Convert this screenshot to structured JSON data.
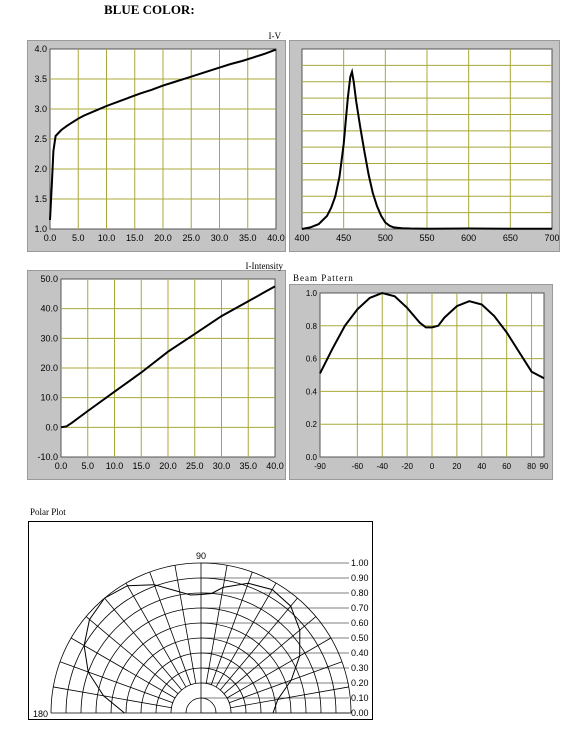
{
  "heading": "BLUE COLOR:",
  "chart_data": [
    {
      "type": "line",
      "title": "I-V",
      "xlim": [
        0,
        40
      ],
      "ylim": [
        1.0,
        4.0
      ],
      "xticks": [
        "0.0",
        "5.0",
        "10.0",
        "15.0",
        "20.0",
        "25.0",
        "30.0",
        "35.0",
        "40.0"
      ],
      "yticks": [
        "1.0",
        "1.5",
        "2.0",
        "2.5",
        "3.0",
        "3.5",
        "4.0"
      ],
      "grid": true,
      "x": [
        0,
        0.3,
        0.6,
        1,
        2,
        3,
        4,
        5,
        6,
        8,
        10,
        12,
        14,
        16,
        18,
        20,
        22,
        24,
        26,
        28,
        30,
        32,
        34,
        36,
        38,
        40
      ],
      "y": [
        1.15,
        1.7,
        2.3,
        2.55,
        2.65,
        2.72,
        2.78,
        2.84,
        2.89,
        2.97,
        3.05,
        3.12,
        3.19,
        3.26,
        3.32,
        3.39,
        3.45,
        3.51,
        3.57,
        3.63,
        3.69,
        3.75,
        3.8,
        3.86,
        3.92,
        3.99
      ]
    },
    {
      "type": "line",
      "title": "",
      "xlim": [
        400,
        700
      ],
      "ylim": [
        0,
        1.1
      ],
      "xticks": [
        "400",
        "450",
        "500",
        "550",
        "600",
        "650",
        "700"
      ],
      "grid": true,
      "x": [
        400,
        410,
        420,
        430,
        435,
        440,
        445,
        450,
        455,
        458,
        460,
        462,
        465,
        470,
        475,
        480,
        485,
        490,
        495,
        500,
        505,
        510,
        520,
        530,
        550,
        600,
        650,
        700
      ],
      "y": [
        0,
        0.01,
        0.03,
        0.08,
        0.13,
        0.2,
        0.32,
        0.52,
        0.8,
        0.93,
        0.96,
        0.9,
        0.78,
        0.62,
        0.47,
        0.33,
        0.22,
        0.14,
        0.08,
        0.04,
        0.02,
        0.01,
        0.005,
        0.003,
        0.002,
        0.003,
        0.002,
        0.002
      ]
    },
    {
      "type": "line",
      "title": "I-Intensity",
      "xlim": [
        0,
        40
      ],
      "ylim": [
        -10,
        50
      ],
      "xticks": [
        "0.0",
        "5.0",
        "10.0",
        "15.0",
        "20.0",
        "25.0",
        "30.0",
        "35.0",
        "40.0"
      ],
      "yticks": [
        "-10.0",
        "0.0",
        "10.0",
        "20.0",
        "30.0",
        "40.0",
        "50.0"
      ],
      "grid": true,
      "x": [
        0,
        1,
        2,
        5,
        10,
        15,
        20,
        25,
        30,
        35,
        38,
        40
      ],
      "y": [
        0,
        0.3,
        1.5,
        5.5,
        12,
        18.5,
        25.5,
        31.5,
        37.5,
        42.5,
        45.5,
        47.5
      ]
    },
    {
      "type": "line",
      "title": "Beam Pattern",
      "xlim": [
        -90,
        90
      ],
      "ylim": [
        0,
        1.0
      ],
      "xticks": [
        "-90",
        "-60",
        "-40",
        "-20",
        "0",
        "20",
        "40",
        "60",
        "80",
        "90"
      ],
      "yticks": [
        "0.0",
        "0.2",
        "0.4",
        "0.6",
        "0.8",
        "1.0"
      ],
      "grid": true,
      "x": [
        -90,
        -80,
        -70,
        -60,
        -50,
        -40,
        -30,
        -20,
        -10,
        -5,
        0,
        5,
        10,
        20,
        30,
        40,
        50,
        60,
        70,
        80,
        90
      ],
      "y": [
        0.51,
        0.66,
        0.8,
        0.9,
        0.97,
        1.0,
        0.98,
        0.91,
        0.82,
        0.79,
        0.79,
        0.8,
        0.85,
        0.92,
        0.95,
        0.93,
        0.86,
        0.76,
        0.64,
        0.52,
        0.48
      ]
    },
    {
      "type": "line",
      "title": "Polar Plot",
      "radial_ticks": [
        "0.00",
        "0.10",
        "0.20",
        "0.30",
        "0.40",
        "0.50",
        "0.60",
        "0.70",
        "0.80",
        "0.90",
        "1.00"
      ],
      "angle_labels": [
        "90",
        "180"
      ],
      "grid": true,
      "theta": [
        0,
        10,
        20,
        30,
        40,
        50,
        60,
        70,
        80,
        85,
        90,
        95,
        100,
        110,
        120,
        130,
        140,
        150,
        160,
        170,
        180
      ],
      "r": [
        0.48,
        0.52,
        0.64,
        0.76,
        0.86,
        0.93,
        0.95,
        0.92,
        0.85,
        0.8,
        0.79,
        0.79,
        0.82,
        0.91,
        0.98,
        1.0,
        0.97,
        0.9,
        0.8,
        0.66,
        0.51
      ]
    }
  ]
}
